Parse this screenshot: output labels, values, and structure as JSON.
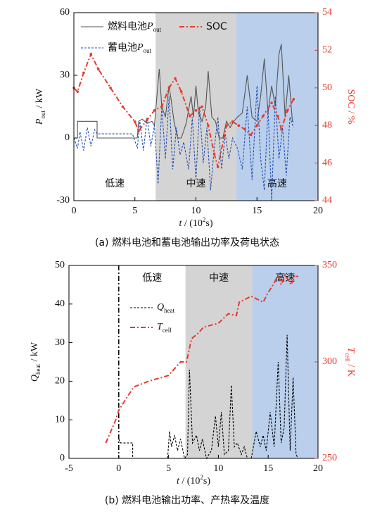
{
  "chart_data": [
    {
      "type": "line",
      "caption": "(a) 燃料电池和蓄电池输出功率及荷电状态",
      "xlabel": {
        "text": "t",
        "unit": " / (10",
        "sup": "2",
        "rest": "s)"
      },
      "ylabel": {
        "text": "P",
        "sub": "out",
        "unit": " / kW"
      },
      "y2label": {
        "text": "SOC / %"
      },
      "xlim": [
        0,
        20
      ],
      "xticks": [
        0,
        5,
        10,
        15,
        20
      ],
      "ylim": [
        -30,
        60
      ],
      "yticks": [
        -30,
        0,
        30,
        60
      ],
      "y2lim": [
        44,
        54
      ],
      "y2ticks": [
        44,
        46,
        48,
        50,
        52,
        54
      ],
      "region_label_position": "bottom",
      "regions": [
        {
          "label": "低速",
          "xlim": [
            0,
            6.7
          ]
        },
        {
          "label": "中速",
          "xlim": [
            6.7,
            13.3
          ],
          "color": "#d4d4d4"
        },
        {
          "label": "高速",
          "xlim": [
            13.3,
            20
          ],
          "color": "#b9cfec"
        }
      ],
      "series": [
        {
          "name": "燃料电池",
          "name_var": "P",
          "name_sub": "out",
          "color": "#555555",
          "dash": "solid",
          "x": [
            0,
            0.3,
            0.3,
            1.9,
            1.9,
            5.2,
            5.3,
            5.6,
            6.0,
            6.4,
            6.6,
            6.8,
            7.0,
            7.2,
            7.5,
            7.8,
            8.0,
            8.2,
            8.5,
            8.8,
            9.2,
            9.6,
            9.8,
            10.0,
            10.2,
            10.5,
            10.8,
            11.0,
            11.3,
            11.6,
            11.9,
            12.2,
            12.5,
            12.8,
            13.1,
            13.4,
            13.8,
            14.2,
            14.6,
            15.0,
            15.3,
            15.6,
            15.9,
            16.2,
            16.5,
            16.8,
            17.0,
            17.3,
            17.6,
            17.9,
            18.0
          ],
          "values": [
            0,
            0,
            8,
            8,
            0,
            0,
            8,
            9,
            7,
            8,
            6,
            20,
            33,
            15,
            10,
            25,
            17,
            8,
            0,
            0,
            7,
            20,
            10,
            25,
            12,
            8,
            15,
            32,
            10,
            8,
            0,
            0,
            8,
            5,
            8,
            10,
            12,
            30,
            10,
            8,
            20,
            38,
            12,
            25,
            15,
            40,
            45,
            10,
            30,
            8,
            8
          ]
        },
        {
          "name": "蓄电池",
          "name_var": "P",
          "name_sub": "out",
          "color": "#2350b0",
          "dash": "dashed",
          "x": [
            0,
            0.3,
            0.5,
            0.8,
            1.1,
            1.4,
            1.7,
            1.9,
            2.2,
            2.8,
            3.5,
            4.2,
            4.8,
            5.2,
            5.4,
            5.7,
            6.0,
            6.3,
            6.6,
            6.9,
            7.2,
            7.5,
            7.8,
            8.1,
            8.4,
            8.7,
            9.0,
            9.4,
            9.7,
            10.0,
            10.3,
            10.6,
            10.9,
            11.2,
            11.5,
            11.8,
            12.1,
            12.4,
            12.7,
            13.0,
            13.4,
            13.8,
            14.2,
            14.6,
            15.0,
            15.3,
            15.6,
            15.9,
            16.2,
            16.5,
            16.8,
            17.1,
            17.4,
            17.7,
            18.0
          ],
          "values": [
            0,
            -5,
            3,
            -6,
            5,
            -4,
            4,
            2,
            2,
            2,
            2,
            2,
            2,
            -5,
            8,
            -6,
            10,
            -4,
            6,
            -22,
            15,
            -10,
            20,
            -15,
            5,
            -8,
            -2,
            -15,
            10,
            -20,
            15,
            -12,
            5,
            -25,
            -5,
            10,
            -15,
            2,
            -10,
            0,
            -5,
            -15,
            15,
            -20,
            25,
            -10,
            -25,
            15,
            -30,
            20,
            -10,
            5,
            -18,
            10,
            5
          ]
        },
        {
          "name": "SOC",
          "color": "#e8392e",
          "dash": "dashdot",
          "marker": true,
          "axis": "y2",
          "x": [
            0,
            0.3,
            0.8,
            1.4,
            2,
            3,
            4,
            5,
            5.3,
            6,
            6.6,
            7.2,
            7.8,
            8.3,
            8.8,
            9.5,
            10,
            10.5,
            11,
            11.5,
            11.8,
            12.5,
            13,
            13.5,
            14,
            14.5,
            15,
            15.5,
            16.2,
            16.7,
            17,
            17.5,
            18
          ],
          "values": [
            50,
            49.8,
            50.8,
            51.8,
            51,
            50,
            49,
            48.2,
            47.7,
            48.3,
            48.8,
            49,
            50,
            50.5,
            49.8,
            48.5,
            48.8,
            49,
            48,
            46.5,
            45.8,
            48,
            48.2,
            48,
            47.8,
            47.5,
            48,
            48.5,
            49.2,
            48.5,
            47.8,
            48.8,
            49.4
          ]
        }
      ]
    },
    {
      "type": "line",
      "caption": "(b) 燃料电池输出功率、产热率及温度",
      "xlabel": {
        "text": "t",
        "unit": " / (10",
        "sup": "2",
        "rest": "s)"
      },
      "ylabel": {
        "text": "Q",
        "sub": "heat",
        "unit": " / kW"
      },
      "y2label": {
        "text": "T",
        "sub": "cell",
        "unit": " / K"
      },
      "xlim": [
        -5,
        20
      ],
      "xticks": [
        -5,
        0,
        5,
        10,
        15,
        20
      ],
      "ylim": [
        0,
        50
      ],
      "yticks": [
        0,
        10,
        20,
        30,
        40,
        50
      ],
      "y2lim": [
        250,
        350
      ],
      "y2ticks": [
        250,
        300,
        350
      ],
      "vlines": [
        0
      ],
      "region_label_position": "top",
      "regions": [
        {
          "label": "低速",
          "xlim": [
            0,
            6.7
          ]
        },
        {
          "label": "中速",
          "xlim": [
            6.7,
            13.4
          ],
          "color": "#d4d4d4"
        },
        {
          "label": "高速",
          "xlim": [
            13.4,
            20
          ],
          "color": "#b9cfec"
        }
      ],
      "series": [
        {
          "name_var": "Q",
          "name_sub": "heat",
          "color": "#000000",
          "dash": "dashed",
          "x": [
            0,
            0.2,
            1.4,
            1.4,
            4.9,
            5.1,
            5.3,
            5.6,
            5.9,
            6.2,
            6.6,
            6.9,
            7.1,
            7.4,
            7.8,
            8.1,
            8.4,
            8.8,
            9.3,
            9.7,
            10.0,
            10.3,
            10.6,
            11.0,
            11.3,
            11.6,
            11.9,
            12.3,
            12.6,
            12.9,
            13.3,
            13.8,
            14.2,
            14.5,
            14.8,
            15.2,
            15.6,
            16.0,
            16.3,
            16.6,
            16.9,
            17.2,
            17.5,
            17.8,
            18.0
          ],
          "values": [
            5,
            4,
            4,
            0,
            0,
            7,
            3,
            6,
            2,
            5,
            0,
            1,
            23,
            4,
            6,
            2,
            5,
            0,
            2,
            11,
            3,
            12,
            1,
            2,
            19,
            3,
            4,
            1,
            3,
            0,
            0,
            7,
            3,
            6,
            2,
            12,
            3,
            25,
            4,
            8,
            32,
            2,
            21,
            1,
            0
          ]
        },
        {
          "name_var": "T",
          "name_sub": "cell",
          "color": "#e8392e",
          "dash": "dashdot",
          "axis": "y2",
          "x": [
            -1.3,
            -0.3,
            0,
            1.5,
            3,
            5,
            6.2,
            6.8,
            7.3,
            8,
            8.5,
            10,
            11,
            11.8,
            12.1,
            13.3,
            14.5,
            15,
            15.5,
            16,
            16.3,
            16.7,
            17.3,
            17.7,
            18
          ],
          "values": [
            258,
            270,
            275,
            287,
            290,
            293,
            300,
            300,
            312,
            315,
            318,
            320,
            325,
            324,
            331,
            334,
            331,
            336,
            340,
            345,
            340,
            345,
            340,
            345,
            344
          ]
        }
      ]
    }
  ]
}
